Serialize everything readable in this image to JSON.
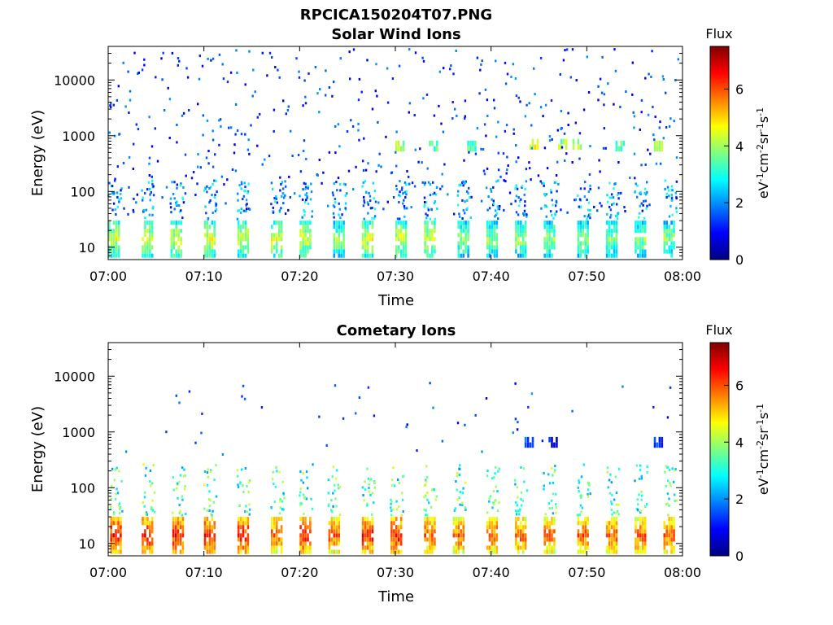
{
  "figure": {
    "title": "RPCICA150204T07.PNG"
  },
  "chart_data": [
    {
      "type": "heatmap",
      "title": "Solar Wind Ions",
      "xlabel": "Time",
      "ylabel": "Energy (eV)",
      "x_ticks": [
        "07:00",
        "07:10",
        "07:20",
        "07:30",
        "07:40",
        "07:50",
        "08:00"
      ],
      "xlim": [
        "07:00",
        "08:00"
      ],
      "y_scale": "log",
      "y_ticks": [
        "10",
        "100",
        "1000",
        "10000"
      ],
      "ylim": [
        6,
        40000
      ],
      "colorbar": {
        "label": "Flux",
        "unit_label": "eV-1cm-2sr-1s-1",
        "ticks": [
          "0",
          "2",
          "4",
          "6"
        ],
        "range": [
          0,
          7.5
        ],
        "colormap": "jet"
      },
      "description_cells": [
        {
          "t": 0.5,
          "e": 15,
          "v": 5
        },
        {
          "t": 4,
          "e": 15,
          "v": 5
        },
        {
          "t": 7,
          "e": 15,
          "v": 5
        },
        {
          "t": 10.5,
          "e": 15,
          "v": 5
        },
        {
          "t": 14,
          "e": 15,
          "v": 5
        },
        {
          "t": 17.5,
          "e": 15,
          "v": 5
        },
        {
          "t": 20.5,
          "e": 15,
          "v": 5
        },
        {
          "t": 24,
          "e": 15,
          "v": 4.5
        },
        {
          "t": 27,
          "e": 15,
          "v": 5
        },
        {
          "t": 30.5,
          "e": 15,
          "v": 5
        },
        {
          "t": 33.5,
          "e": 15,
          "v": 5
        },
        {
          "t": 37,
          "e": 15,
          "v": 4.5
        },
        {
          "t": 40,
          "e": 15,
          "v": 4.5
        },
        {
          "t": 43,
          "e": 15,
          "v": 4.5
        },
        {
          "t": 46,
          "e": 15,
          "v": 4.5
        },
        {
          "t": 49.5,
          "e": 15,
          "v": 4.5
        },
        {
          "t": 52.5,
          "e": 15,
          "v": 4.5
        },
        {
          "t": 55.5,
          "e": 15,
          "v": 4.5
        },
        {
          "t": 58.5,
          "e": 15,
          "v": 4.5
        },
        {
          "t": 44.5,
          "e": 700,
          "v": 5
        },
        {
          "t": 47.5,
          "e": 700,
          "v": 4.5
        },
        {
          "t": 49,
          "e": 700,
          "v": 4.5
        },
        {
          "t": 30.5,
          "e": 650,
          "v": 4.5
        },
        {
          "t": 34,
          "e": 650,
          "v": 4
        },
        {
          "t": 38,
          "e": 650,
          "v": 4
        },
        {
          "t": 57.5,
          "e": 650,
          "v": 4.5
        },
        {
          "t": 53.5,
          "e": 650,
          "v": 4
        }
      ]
    },
    {
      "type": "heatmap",
      "title": "Cometary Ions",
      "xlabel": "Time",
      "ylabel": "Energy (eV)",
      "x_ticks": [
        "07:00",
        "07:10",
        "07:20",
        "07:30",
        "07:40",
        "07:50",
        "08:00"
      ],
      "xlim": [
        "07:00",
        "08:00"
      ],
      "y_scale": "log",
      "y_ticks": [
        "10",
        "100",
        "1000",
        "10000"
      ],
      "ylim": [
        6,
        40000
      ],
      "colorbar": {
        "label": "Flux",
        "unit_label": "eV-1cm-2sr-1s-1",
        "ticks": [
          "0",
          "2",
          "4",
          "6"
        ],
        "range": [
          0,
          7.5
        ],
        "colormap": "jet"
      },
      "description_cells": [
        {
          "t": 0.7,
          "e": 15,
          "v": 7
        },
        {
          "t": 4,
          "e": 15,
          "v": 7
        },
        {
          "t": 7.2,
          "e": 15,
          "v": 7
        },
        {
          "t": 10.5,
          "e": 15,
          "v": 7
        },
        {
          "t": 14,
          "e": 15,
          "v": 7
        },
        {
          "t": 17.5,
          "e": 15,
          "v": 6.5
        },
        {
          "t": 20.5,
          "e": 15,
          "v": 7
        },
        {
          "t": 23.5,
          "e": 15,
          "v": 6.5
        },
        {
          "t": 27,
          "e": 15,
          "v": 7
        },
        {
          "t": 30,
          "e": 15,
          "v": 7
        },
        {
          "t": 33.5,
          "e": 15,
          "v": 6.5
        },
        {
          "t": 36.5,
          "e": 15,
          "v": 6.5
        },
        {
          "t": 40,
          "e": 15,
          "v": 6.5
        },
        {
          "t": 43,
          "e": 15,
          "v": 6.5
        },
        {
          "t": 46,
          "e": 15,
          "v": 6.5
        },
        {
          "t": 49.5,
          "e": 15,
          "v": 6.5
        },
        {
          "t": 52.5,
          "e": 15,
          "v": 6.5
        },
        {
          "t": 55.5,
          "e": 15,
          "v": 6.5
        },
        {
          "t": 58.5,
          "e": 15,
          "v": 6.5
        },
        {
          "t": 44,
          "e": 650,
          "v": 2
        },
        {
          "t": 46.5,
          "e": 650,
          "v": 1.5
        },
        {
          "t": 57.5,
          "e": 650,
          "v": 2
        }
      ]
    }
  ]
}
